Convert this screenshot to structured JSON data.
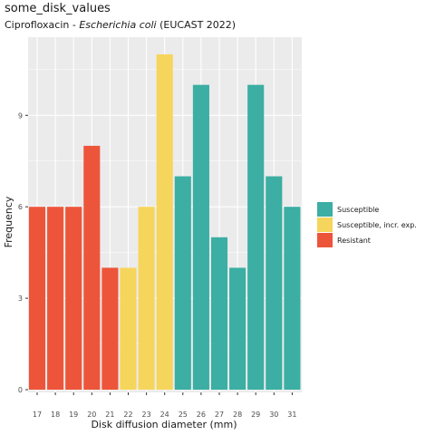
{
  "chart_data": {
    "type": "bar",
    "title": "some_disk_values",
    "subtitle": {
      "prefix": "Ciprofloxacin - ",
      "organism": "Escherichia coli",
      "suffix": " (EUCAST 2022)"
    },
    "xlabel": "Disk diffusion diameter (mm)",
    "ylabel": "Frequency",
    "categories": [
      "17",
      "18",
      "19",
      "20",
      "21",
      "22",
      "23",
      "24",
      "25",
      "26",
      "27",
      "28",
      "29",
      "30",
      "31"
    ],
    "values": [
      6,
      6,
      6,
      8,
      4,
      4,
      6,
      11,
      7,
      10,
      5,
      4,
      10,
      7,
      6
    ],
    "interpretation": [
      "R",
      "R",
      "R",
      "R",
      "R",
      "I",
      "I",
      "I",
      "S",
      "S",
      "S",
      "S",
      "S",
      "S",
      "S"
    ],
    "yticks": [
      0,
      3,
      6,
      9
    ],
    "ylim": [
      0,
      11.5
    ],
    "grid": true,
    "legend": {
      "position": "right",
      "items": [
        {
          "key": "S",
          "label": "Susceptible",
          "color": "#3CAEA3"
        },
        {
          "key": "I",
          "label": "Susceptible, incr. exp.",
          "color": "#F6D55C"
        },
        {
          "key": "R",
          "label": "Resistant",
          "color": "#ED553B"
        }
      ]
    },
    "panel_background": "#EBEBEB",
    "grid_color": "#FFFFFF"
  }
}
